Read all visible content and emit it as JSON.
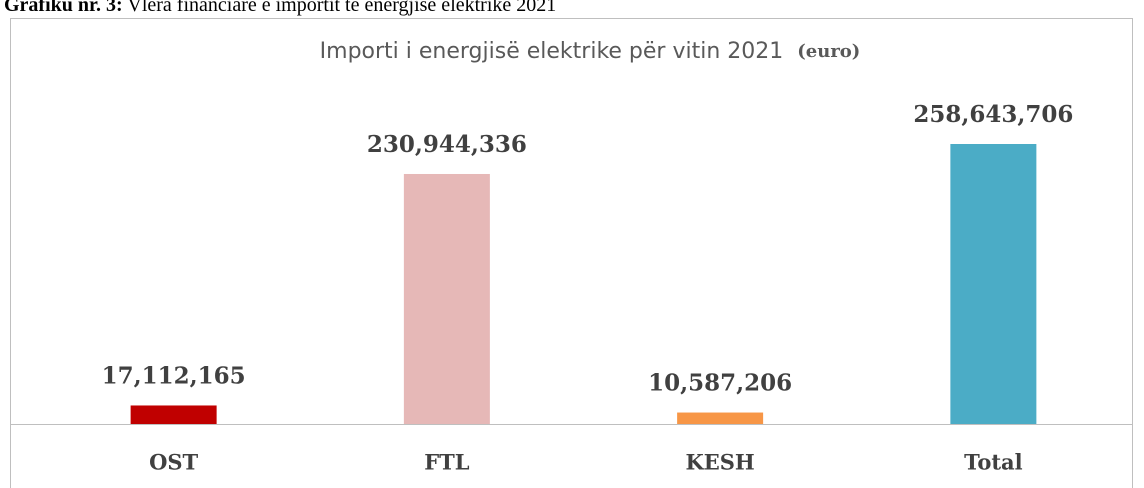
{
  "caption": {
    "label": "Grafiku nr. 3:",
    "text": "Vlera financiare e importit të energjisë elektrike 2021"
  },
  "chart_data": {
    "type": "bar",
    "title": "Importi i energjisë elektrike për vitin 2021",
    "unit": "(euro)",
    "categories": [
      "OST",
      "FTL",
      "KESH",
      "Total"
    ],
    "values": [
      17112165,
      230944336,
      10587206,
      258643706
    ],
    "value_labels": [
      "17,112,165",
      "230,944,336",
      "10,587,206",
      "258,643,706"
    ],
    "colors": [
      "#c00000",
      "#e6b8b7",
      "#f79646",
      "#4bacc6"
    ]
  }
}
